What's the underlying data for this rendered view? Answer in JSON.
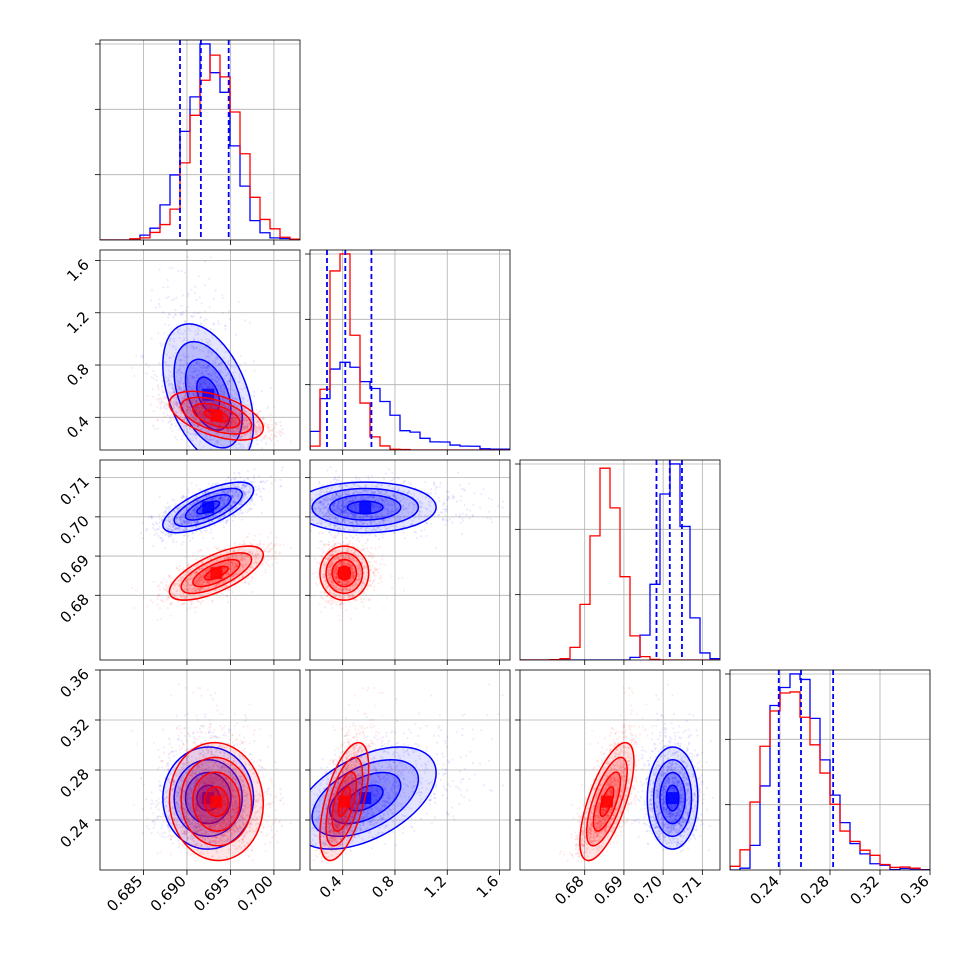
{
  "chart_data": {
    "type": "corner",
    "colors": {
      "blue": "#0000ff",
      "red": "#ff0000",
      "grid": "#b0b0b0"
    },
    "grid": true,
    "params": [
      {
        "range": [
          0.68,
          0.703
        ],
        "ticks": [
          0.685,
          0.69,
          0.695,
          0.7
        ],
        "labels": [
          "0.685",
          "0.690",
          "0.695",
          "0.700"
        ]
      },
      {
        "range": [
          0.15,
          1.68
        ],
        "ticks": [
          0.4,
          0.8,
          1.2,
          1.6
        ],
        "labels": [
          "0.4",
          "0.8",
          "1.2",
          "1.6"
        ]
      },
      {
        "range": [
          0.6635,
          0.7145
        ],
        "ticks": [
          0.68,
          0.69,
          0.7,
          0.71
        ],
        "labels": [
          "0.68",
          "0.69",
          "0.70",
          "0.71"
        ]
      },
      {
        "range": [
          0.2,
          0.36
        ],
        "ticks": [
          0.24,
          0.28,
          0.32,
          0.36
        ],
        "labels": [
          "0.24",
          "0.28",
          "0.32",
          "0.36"
        ]
      }
    ],
    "series": [
      {
        "color": "blue",
        "mean": [
          0.6925,
          0.52,
          0.7025,
          0.255
        ],
        "sd": [
          0.0026,
          0.2,
          0.0032,
          0.02
        ],
        "corr": [
          [
            1,
            -0.45,
            0.7,
            0.0
          ],
          [
            -0.45,
            1,
            0.0,
            0.5
          ],
          [
            0.7,
            0.0,
            1,
            0.0
          ],
          [
            0.0,
            0.5,
            0.0,
            1
          ]
        ],
        "quantiles": [
          [
            0.6892,
            0.6916,
            0.6948
          ],
          [
            0.28,
            0.42,
            0.62
          ],
          [
            0.6983,
            0.7017,
            0.7048
          ],
          [
            0.239,
            0.2568,
            0.2825
          ]
        ]
      },
      {
        "color": "red",
        "mean": [
          0.6935,
          0.4,
          0.6858,
          0.252
        ],
        "sd": [
          0.0027,
          0.08,
          0.0035,
          0.022
        ],
        "corr": [
          [
            1,
            -0.5,
            0.7,
            0.0
          ],
          [
            -0.5,
            1,
            0.0,
            0.6
          ],
          [
            0.7,
            0.0,
            1,
            0.75
          ],
          [
            0.0,
            0.6,
            0.75,
            1
          ]
        ]
      }
    ]
  }
}
